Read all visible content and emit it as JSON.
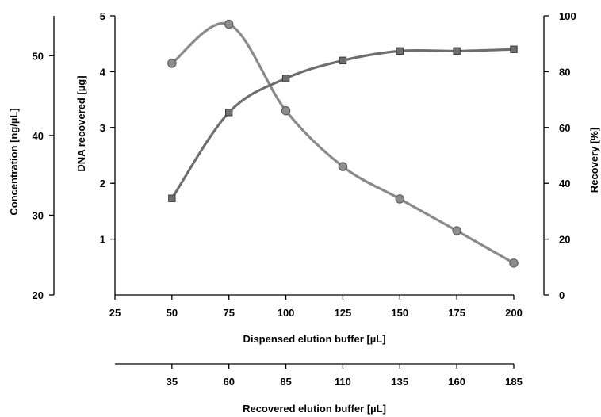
{
  "chart_data": {
    "type": "line",
    "x_label": "Dispensed elution buffer [µL]",
    "x_ticks": [
      25,
      50,
      75,
      100,
      125,
      150,
      175,
      200
    ],
    "x_range": [
      25,
      200
    ],
    "secondary_x_label": "Recovered elution buffer [µL]",
    "secondary_x_ticks": [
      35,
      60,
      85,
      110,
      135,
      160,
      185
    ],
    "y_axes": {
      "concentration": {
        "label": "Concentration [ng/µL]",
        "range": [
          20,
          55
        ],
        "ticks": [
          20,
          30,
          40,
          50
        ]
      },
      "dna": {
        "label": "DNA recovered [µg]",
        "range": [
          0,
          5
        ],
        "ticks": [
          1,
          2,
          3,
          4,
          5
        ]
      },
      "recovery": {
        "label": "Recovery [%]",
        "range": [
          0,
          100
        ],
        "ticks": [
          0,
          20,
          40,
          60,
          80,
          100
        ]
      }
    },
    "series": [
      {
        "marker": "circle",
        "color": "#8c8c8c",
        "x": [
          50,
          75,
          100,
          125,
          150,
          175,
          200
        ],
        "values": [
          4.15,
          4.85,
          3.3,
          2.3,
          1.72,
          1.15,
          0.57
        ]
      },
      {
        "marker": "square",
        "color": "#6e6e6e",
        "x": [
          50,
          75,
          100,
          125,
          150,
          175,
          200
        ],
        "values": [
          1.73,
          3.27,
          3.88,
          4.2,
          4.37,
          4.37,
          4.4
        ]
      }
    ],
    "grid": false
  }
}
